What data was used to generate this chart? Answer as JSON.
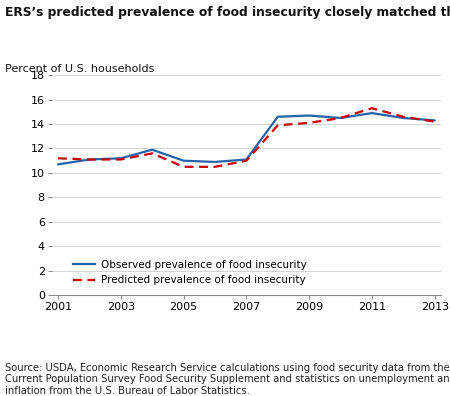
{
  "title": "ERS’s predicted prevalence of food insecurity closely matched the observed prevalence",
  "ylabel": "Percent of U.S. households",
  "source": "Source: USDA, Economic Research Service calculations using food security data from the\nCurrent Population Survey Food Security Supplement and statistics on unemployment and\ninflation from the U.S. Bureau of Labor Statistics.",
  "observed_x": [
    2001,
    2002,
    2003,
    2004,
    2005,
    2006,
    2007,
    2008,
    2009,
    2010,
    2011,
    2012,
    2013
  ],
  "observed_y": [
    10.7,
    11.1,
    11.2,
    11.9,
    11.0,
    10.9,
    11.1,
    14.6,
    14.7,
    14.5,
    14.9,
    14.5,
    14.3
  ],
  "predicted_x": [
    2001,
    2002,
    2003,
    2004,
    2005,
    2006,
    2007,
    2008,
    2009,
    2010,
    2011,
    2012,
    2013
  ],
  "predicted_y": [
    11.2,
    11.1,
    11.1,
    11.6,
    10.5,
    10.5,
    11.0,
    13.9,
    14.1,
    14.5,
    15.3,
    14.6,
    14.2
  ],
  "observed_color": "#2563a8",
  "predicted_color": "#cc0000",
  "ylim": [
    0,
    18
  ],
  "yticks": [
    0,
    2,
    4,
    6,
    8,
    10,
    12,
    14,
    16,
    18
  ],
  "xlim": [
    2001,
    2013
  ],
  "xticks": [
    2001,
    2003,
    2005,
    2007,
    2009,
    2011,
    2013
  ],
  "legend_observed": "Observed prevalence of food insecurity",
  "legend_predicted": "Predicted prevalence of food insecurity",
  "title_fontsize": 8.8,
  "label_fontsize": 8.0,
  "tick_fontsize": 8.0,
  "source_fontsize": 7.2
}
